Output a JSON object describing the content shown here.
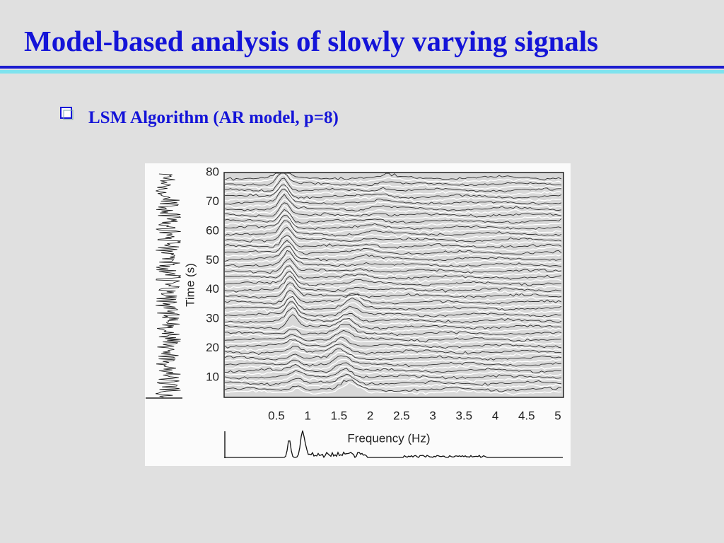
{
  "slide": {
    "title": "Model-based analysis of slowly varying signals",
    "bullet": "LSM Algorithm (AR model, p=8)",
    "figure": {
      "y_label": "Time (s)",
      "y_ticks": [
        80,
        70,
        60,
        50,
        40,
        30,
        20,
        10
      ],
      "x_label": "Frequency (Hz)",
      "x_ticks": [
        0.5,
        1,
        1.5,
        2,
        2.5,
        3,
        3.5,
        4,
        4.5,
        5
      ]
    }
  }
}
